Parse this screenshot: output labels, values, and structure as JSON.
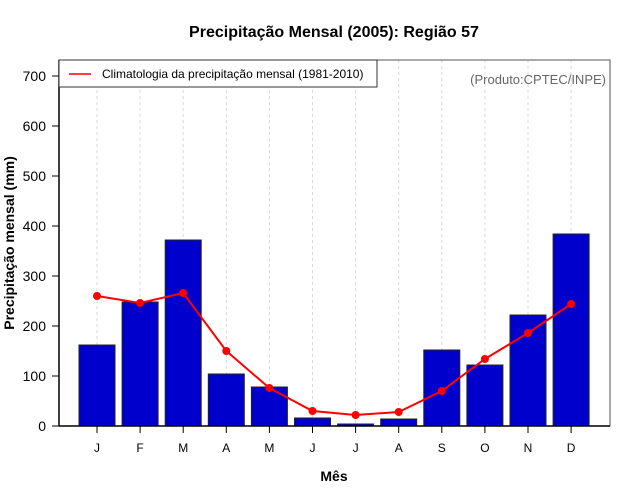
{
  "chart_data": {
    "type": "bar",
    "title": "Precipitação Mensal (2005): Região 57",
    "xlabel": "Mês",
    "ylabel": "Precipitação mensal (mm)",
    "ylim": [
      0,
      700
    ],
    "yticks": [
      0,
      100,
      200,
      300,
      400,
      500,
      600,
      700
    ],
    "categories": [
      "J",
      "F",
      "M",
      "A",
      "M",
      "J",
      "J",
      "A",
      "S",
      "O",
      "N",
      "D"
    ],
    "grid": "vertical dashed at categories",
    "series": [
      {
        "name": "Precipitação mensal 2005",
        "type": "bar",
        "color": "#0000CD",
        "values": [
          162,
          248,
          372,
          104,
          78,
          16,
          4,
          14,
          152,
          122,
          222,
          384
        ]
      },
      {
        "name": "Climatologia da precipitação mensal (1981-2010)",
        "type": "line",
        "color": "#FF0000",
        "values": [
          260,
          246,
          266,
          150,
          76,
          30,
          22,
          28,
          70,
          134,
          186,
          244
        ]
      }
    ],
    "legend": {
      "placement": "top-left",
      "entries": [
        "Climatologia da precipitação mensal (1981-2010)"
      ]
    },
    "annotation": "(Produto:CPTEC/INPE)"
  }
}
